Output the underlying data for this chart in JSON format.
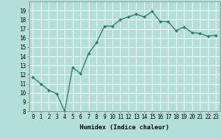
{
  "title": "",
  "xlabel": "Humidex (Indice chaleur)",
  "x": [
    0,
    1,
    2,
    3,
    4,
    5,
    6,
    7,
    8,
    9,
    10,
    11,
    12,
    13,
    14,
    15,
    16,
    17,
    18,
    19,
    20,
    21,
    22,
    23
  ],
  "y": [
    11.7,
    11.0,
    10.3,
    9.9,
    8.0,
    12.8,
    12.1,
    14.3,
    15.5,
    17.3,
    17.3,
    18.0,
    18.3,
    18.6,
    18.3,
    18.9,
    17.8,
    17.8,
    16.8,
    17.2,
    16.6,
    16.5,
    16.2,
    16.3
  ],
  "line_color": "#2e7d6d",
  "marker": "D",
  "marker_size": 2.0,
  "bg_color": "#b2e0d8",
  "grid_color": "#ffffff",
  "ylim": [
    8,
    20
  ],
  "xlim": [
    -0.5,
    23.5
  ],
  "yticks": [
    8,
    9,
    10,
    11,
    12,
    13,
    14,
    15,
    16,
    17,
    18,
    19
  ],
  "xticks": [
    0,
    1,
    2,
    3,
    4,
    5,
    6,
    7,
    8,
    9,
    10,
    11,
    12,
    13,
    14,
    15,
    16,
    17,
    18,
    19,
    20,
    21,
    22,
    23
  ],
  "xtick_labels": [
    "0",
    "1",
    "2",
    "3",
    "4",
    "5",
    "6",
    "7",
    "8",
    "9",
    "10",
    "11",
    "12",
    "13",
    "14",
    "15",
    "16",
    "17",
    "18",
    "19",
    "20",
    "21",
    "22",
    "23"
  ],
  "tick_fontsize": 5.5,
  "xlabel_fontsize": 6.5,
  "line_width": 1.0
}
